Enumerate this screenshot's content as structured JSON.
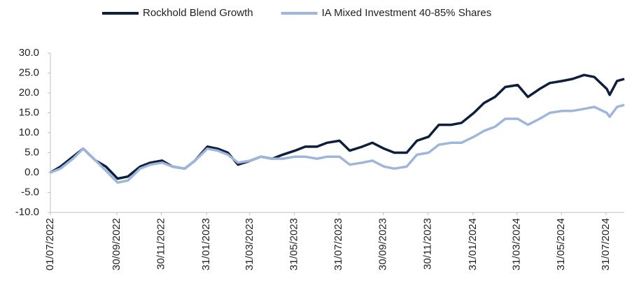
{
  "chart_data": {
    "type": "line",
    "x": [
      "01/07/2022",
      "15/07/2022",
      "01/08/2022",
      "15/08/2022",
      "01/09/2022",
      "15/09/2022",
      "01/10/2022",
      "15/10/2022",
      "01/11/2022",
      "15/11/2022",
      "01/12/2022",
      "15/12/2022",
      "01/01/2023",
      "15/01/2023",
      "01/02/2023",
      "15/02/2023",
      "01/03/2023",
      "15/03/2023",
      "01/04/2023",
      "15/04/2023",
      "01/05/2023",
      "15/05/2023",
      "01/06/2023",
      "15/06/2023",
      "01/07/2023",
      "15/07/2023",
      "01/08/2023",
      "15/08/2023",
      "01/09/2023",
      "15/09/2023",
      "01/10/2023",
      "15/10/2023",
      "01/11/2023",
      "15/11/2023",
      "01/12/2023",
      "15/12/2023",
      "01/01/2024",
      "15/01/2024",
      "01/02/2024",
      "15/02/2024",
      "01/03/2024",
      "15/03/2024",
      "01/04/2024",
      "15/04/2024",
      "01/05/2024",
      "15/05/2024",
      "01/06/2024",
      "15/06/2024",
      "01/07/2024",
      "15/07/2024",
      "01/08/2024",
      "05/08/2024",
      "15/08/2024",
      "25/08/2024"
    ],
    "series": [
      {
        "name": "Rockhold Blend Growth",
        "color": "#0d1f3c",
        "values": [
          0,
          1.5,
          4,
          6,
          3,
          1.5,
          -1.5,
          -1,
          1.5,
          2.5,
          3,
          1.5,
          1,
          3,
          6.5,
          6,
          5,
          2,
          3,
          4,
          3.5,
          4.5,
          5.5,
          6.5,
          6.5,
          7.5,
          8,
          5.5,
          6.5,
          7.5,
          6,
          5,
          5,
          8,
          9,
          12,
          12,
          12.5,
          15,
          17.5,
          19,
          21.5,
          22,
          19,
          21,
          22.5,
          23,
          23.5,
          24.5,
          24,
          21,
          19.5,
          23,
          23.5
        ]
      },
      {
        "name": "IA Mixed Investment 40-85% Shares",
        "color": "#9fb6dc",
        "values": [
          0,
          1,
          3.5,
          6,
          3,
          0.5,
          -2.5,
          -2,
          1,
          2,
          2.5,
          1.5,
          1,
          3,
          6,
          5.5,
          4.5,
          2.5,
          3,
          4,
          3.5,
          3.5,
          4,
          4,
          3.5,
          4,
          4,
          2,
          2.5,
          3,
          1.5,
          1,
          1.5,
          4.5,
          5,
          7,
          7.5,
          7.5,
          9,
          10.5,
          11.5,
          13.5,
          13.5,
          12,
          13.5,
          15,
          15.5,
          15.5,
          16,
          16.5,
          15,
          14,
          16.5,
          17
        ]
      }
    ],
    "xlim": [
      "01/07/2022",
      "25/08/2024"
    ],
    "xticks": [
      "01/07/2022",
      "30/09/2022",
      "30/11/2022",
      "31/01/2023",
      "31/03/2023",
      "31/05/2023",
      "31/07/2023",
      "30/09/2023",
      "30/11/2023",
      "31/01/2024",
      "31/03/2024",
      "31/05/2024",
      "31/07/2024"
    ],
    "ylim": [
      -10,
      30
    ],
    "yticks": [
      {
        "value": -10,
        "label": "-10.0"
      },
      {
        "value": -5,
        "label": "-5.0"
      },
      {
        "value": 0,
        "label": "0.0"
      },
      {
        "value": 5,
        "label": "5.0"
      },
      {
        "value": 10,
        "label": "10.0"
      },
      {
        "value": 15,
        "label": "15.0"
      },
      {
        "value": 20,
        "label": "20.0"
      },
      {
        "value": 25,
        "label": "25.0"
      },
      {
        "value": 30,
        "label": "30.0"
      }
    ],
    "legend": "top",
    "grid": false
  }
}
